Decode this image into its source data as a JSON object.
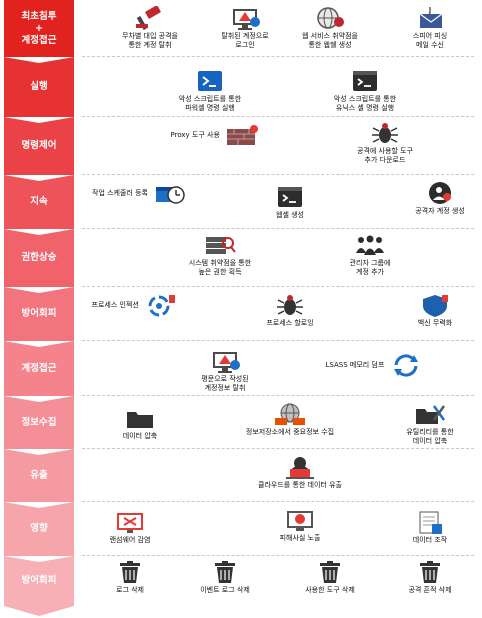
{
  "stages": [
    {
      "phase": "최초침투\n+\n계정접근",
      "color": "#e2221e",
      "items": [
        {
          "label": "무차별 대입 공격을\n통한 계정 탈취",
          "icon": "gavel-icon",
          "name": "item-brute-force"
        },
        {
          "label": "탈취된 계정으로\n로그인",
          "icon": "monitor-alert-icon",
          "name": "item-stolen-login"
        },
        {
          "label": "웹 서비스 취약점을\n통한 웹쉘 생성",
          "icon": "globe-bug-icon",
          "name": "item-webshell-vuln"
        },
        {
          "label": "스피어 피싱\n메일 수신",
          "icon": "phishing-mail-icon",
          "name": "item-spear-phishing"
        }
      ]
    },
    {
      "phase": "실행",
      "color": "#e63232",
      "items": [
        {
          "label": "악성 스크립트를 통한\n파워셸 명령 실행",
          "icon": "powershell-icon",
          "name": "item-powershell"
        },
        {
          "label": "악성 스크립트를 통한\n유닉스 셸 명령 실행",
          "icon": "terminal-icon",
          "name": "item-unix-shell"
        }
      ]
    },
    {
      "phase": "명령제어",
      "color": "#ea4246",
      "items": [
        {
          "label": "Proxy 도구 사용",
          "icon": "firewall-icon",
          "name": "item-proxy-tool"
        },
        {
          "label": "공격에 사용할 도구\n추가 다운로드",
          "icon": "bug-icon",
          "name": "item-tool-download"
        }
      ]
    },
    {
      "phase": "지속",
      "color": "#ed5359",
      "items": [
        {
          "label": "작업 스케줄러 등록",
          "icon": "scheduler-icon",
          "name": "item-task-scheduler"
        },
        {
          "label": "웹셸 생성",
          "icon": "terminal-icon",
          "name": "item-webshell-create"
        },
        {
          "label": "공격자 계정 생성",
          "icon": "user-gear-icon",
          "name": "item-attacker-account"
        }
      ]
    },
    {
      "phase": "권한상승",
      "color": "#f0636b",
      "items": [
        {
          "label": "시스템 취약점을 통한\n높은 권한 획득",
          "icon": "server-search-icon",
          "name": "item-privilege-vuln"
        },
        {
          "label": "관리자 그룹에\n계정 추가",
          "icon": "user-group-icon",
          "name": "item-admin-group"
        }
      ]
    },
    {
      "phase": "방어회피",
      "color": "#f2747c",
      "items": [
        {
          "label": "프로세스 인젝션",
          "icon": "process-alert-icon",
          "name": "item-process-injection"
        },
        {
          "label": "프로세스 할로잉",
          "icon": "bug-icon",
          "name": "item-process-hollowing"
        },
        {
          "label": "백신 무력화",
          "icon": "shield-alert-icon",
          "name": "item-av-disable"
        }
      ]
    },
    {
      "phase": "계정접근",
      "color": "#f4838b",
      "items": [
        {
          "label": "평문으로 작성된\n계정정보 탈취",
          "icon": "monitor-alert-icon",
          "name": "item-plaintext-creds"
        },
        {
          "label": "LSASS 메모리 덤프",
          "icon": "refresh-icon",
          "name": "item-lsass-dump"
        }
      ]
    },
    {
      "phase": "정보수집",
      "color": "#f48f97",
      "items": [
        {
          "label": "데이터 압축",
          "icon": "folder-icon",
          "name": "item-data-compress"
        },
        {
          "label": "정보저장소에서 중요정보 수집",
          "icon": "globe-network-icon",
          "name": "item-repo-collect"
        },
        {
          "label": "유틸리티를 통한\n데이터 압축",
          "icon": "folder-tools-icon",
          "name": "item-utility-compress"
        }
      ]
    },
    {
      "phase": "유출",
      "color": "#f59aa1",
      "items": [
        {
          "label": "클라우드를 통한 데이터 유출",
          "icon": "hacker-laptop-icon",
          "name": "item-cloud-exfil"
        }
      ]
    },
    {
      "phase": "영향",
      "color": "#f6a5ab",
      "items": [
        {
          "label": "랜섬웨어 감염",
          "icon": "ransomware-icon",
          "name": "item-ransomware"
        },
        {
          "label": "피해사실 노출",
          "icon": "hacker-monitor-icon",
          "name": "item-damage-exposure"
        },
        {
          "label": "데이터 조작",
          "icon": "document-edit-icon",
          "name": "item-data-tamper"
        }
      ]
    },
    {
      "phase": "방어회피",
      "color": "#f7b1b6",
      "items": [
        {
          "label": "로그 삭제",
          "icon": "trash-icon",
          "name": "item-log-delete"
        },
        {
          "label": "이벤트 로그 삭제",
          "icon": "trash-icon",
          "name": "item-event-log-delete"
        },
        {
          "label": "사용한 도구 삭제",
          "icon": "trash-icon",
          "name": "item-tool-delete"
        },
        {
          "label": "공격 흔적 삭제",
          "icon": "trash-icon",
          "name": "item-trace-delete"
        }
      ]
    }
  ]
}
